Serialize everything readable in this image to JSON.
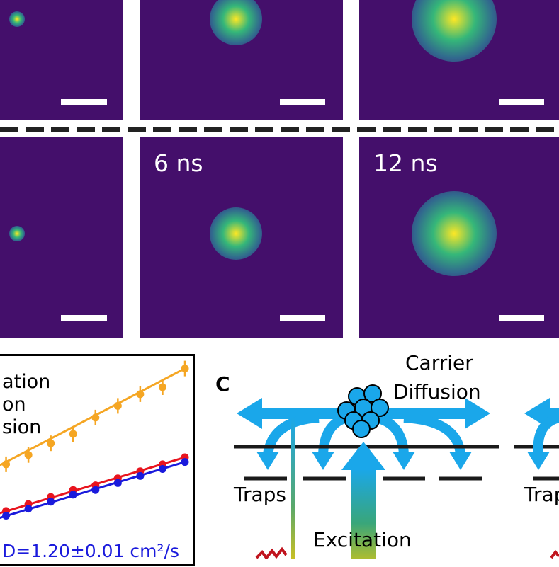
{
  "panels": [
    {
      "id": "top-1",
      "spot": "small"
    },
    {
      "id": "top-2",
      "spot": "medium"
    },
    {
      "id": "top-3",
      "spot": "large"
    },
    {
      "id": "bottom-1",
      "spot": "small"
    },
    {
      "id": "bottom-2",
      "time_label": "6 ns",
      "spot": "medium"
    },
    {
      "id": "bottom-3",
      "time_label": "12 ns",
      "spot": "large"
    }
  ],
  "colors": {
    "image_background": "#440f6b",
    "spot_core": "#fde725",
    "spot_mid": "#35b779",
    "spot_outer": "#31688e",
    "orange_series": "#f5a623",
    "red_series": "#e8141e",
    "blue_series": "#1a1adc",
    "diagram_arrow": "#1aa7ea"
  },
  "chart_data": {
    "type": "scatter",
    "legend_fragments": [
      "ation",
      "on",
      "sion"
    ],
    "annotation": "D=1.20±0.01 cm²/s",
    "series": [
      {
        "color": "orange",
        "points": [
          [
            0,
            0.33
          ],
          [
            1,
            0.37
          ],
          [
            2,
            0.41
          ],
          [
            3,
            0.46
          ],
          [
            4,
            0.5
          ],
          [
            5,
            0.57
          ],
          [
            6,
            0.62
          ],
          [
            7,
            0.67
          ],
          [
            8,
            0.7
          ],
          [
            9,
            0.78
          ]
        ],
        "fit": [
          [
            0,
            0.33
          ],
          [
            9,
            0.78
          ]
        ]
      },
      {
        "color": "red",
        "points": [
          [
            0,
            0.14
          ],
          [
            1,
            0.17
          ],
          [
            2,
            0.2
          ],
          [
            3,
            0.23
          ],
          [
            4,
            0.26
          ],
          [
            5,
            0.28
          ],
          [
            6,
            0.31
          ],
          [
            7,
            0.34
          ],
          [
            8,
            0.37
          ],
          [
            9,
            0.4
          ]
        ],
        "fit": [
          [
            0,
            0.14
          ],
          [
            9,
            0.4
          ]
        ]
      },
      {
        "color": "blue",
        "points": [
          [
            0,
            0.12
          ],
          [
            1,
            0.15
          ],
          [
            2,
            0.18
          ],
          [
            3,
            0.21
          ],
          [
            4,
            0.24
          ],
          [
            5,
            0.26
          ],
          [
            6,
            0.29
          ],
          [
            7,
            0.32
          ],
          [
            8,
            0.35
          ],
          [
            9,
            0.38
          ]
        ],
        "fit": [
          [
            0,
            0.12
          ],
          [
            9,
            0.38
          ]
        ]
      }
    ]
  },
  "diagram": {
    "panel_letter": "C",
    "carrier_label_line1": "Carrier",
    "carrier_label_line2": "Diffusion",
    "traps_label": "Traps",
    "traps_label_right": "Trap",
    "excitation_label": "Excitation"
  }
}
